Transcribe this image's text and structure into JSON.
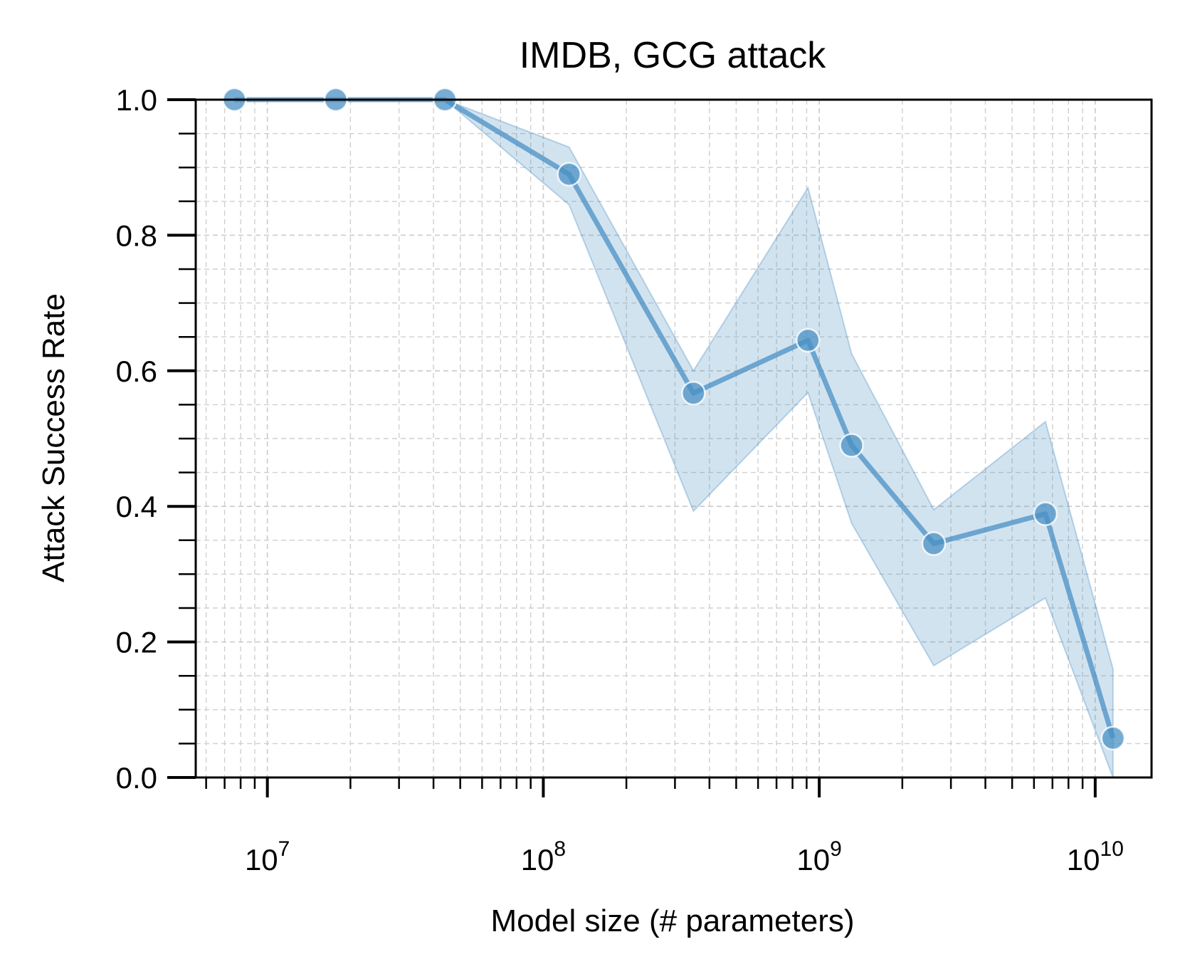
{
  "chart_data": {
    "type": "line",
    "title": "IMDB, GCG attack",
    "xlabel": "Model size (# parameters)",
    "ylabel": "Attack Success Rate",
    "xscale": "log",
    "xlim": [
      5500000.0,
      16000000000.0
    ],
    "ylim": [
      0.0,
      1.0
    ],
    "grid": true,
    "legend": "none",
    "x_ticks": [
      {
        "value": 10000000.0,
        "base": "10",
        "exp": "7"
      },
      {
        "value": 100000000.0,
        "base": "10",
        "exp": "8"
      },
      {
        "value": 1000000000.0,
        "base": "10",
        "exp": "9"
      },
      {
        "value": 10000000000.0,
        "base": "10",
        "exp": "10"
      }
    ],
    "y_ticks": [
      "0.0",
      "0.2",
      "0.4",
      "0.6",
      "0.8",
      "1.0"
    ],
    "series": [
      {
        "color": "#4a90c4",
        "x": [
          7600000.0,
          17700000.0,
          44000000.0,
          124000000.0,
          350000000.0,
          910000000.0,
          1310000000.0,
          2600000000.0,
          6600000000.0,
          11600000000.0
        ],
        "y": [
          1.0,
          1.0,
          1.0,
          0.89,
          0.567,
          0.645,
          0.49,
          0.345,
          0.389,
          0.058
        ],
        "band_low": [
          1.0,
          1.0,
          1.0,
          0.845,
          0.393,
          0.568,
          0.375,
          0.165,
          0.265,
          0.0
        ],
        "band_high": [
          1.0,
          1.0,
          1.0,
          0.93,
          0.6,
          0.87,
          0.625,
          0.395,
          0.525,
          0.16
        ]
      }
    ]
  }
}
